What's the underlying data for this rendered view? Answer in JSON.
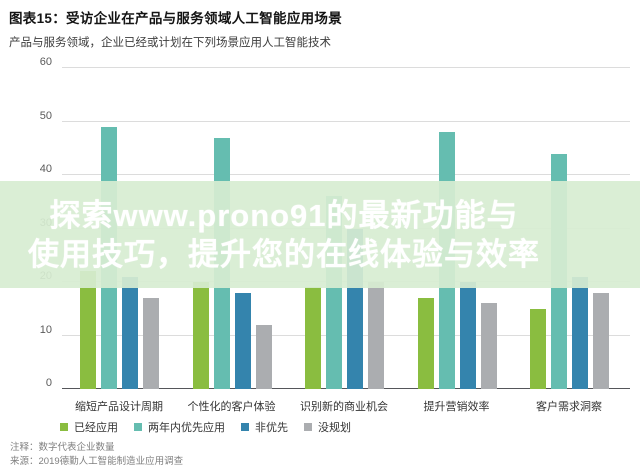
{
  "header": {
    "title": "图表15：受访企业在产品与服务领域人工智能应用场景",
    "subtitle": "产品与服务领域，企业已经或计划在下列场景应用人工智能技术"
  },
  "overlay": {
    "line1": "探索www.prono91的最新功能与",
    "line2": "使用技巧，提升您的在线体验与效率"
  },
  "chart_data": {
    "type": "bar",
    "title": "受访企业在产品与服务领域人工智能应用场景",
    "categories": [
      "缩短产品设计周期",
      "个性化的客户体验",
      "识别新的商业机会",
      "提升营销效率",
      "客户需求洞察"
    ],
    "series": [
      {
        "name": "已经应用",
        "color": "#8abd40",
        "values": [
          22,
          20,
          19,
          17,
          15
        ]
      },
      {
        "name": "两年内优先应用",
        "color": "#65bdb0",
        "values": [
          49,
          47,
          36,
          48,
          44
        ]
      },
      {
        "name": "非优先",
        "color": "#3484ad",
        "values": [
          21,
          18,
          30,
          20,
          21
        ]
      },
      {
        "name": "没规划",
        "color": "#abadb0",
        "values": [
          17,
          12,
          20,
          16,
          18
        ]
      }
    ],
    "xlabel": "",
    "ylabel": "",
    "ylim": [
      0,
      60
    ],
    "ytick_interval": 10,
    "grid": true,
    "legend_position": "bottom-left"
  },
  "notes": {
    "note": "注释：数字代表企业数量",
    "source": "来源：2019德勤人工智能制造业应用调查"
  }
}
